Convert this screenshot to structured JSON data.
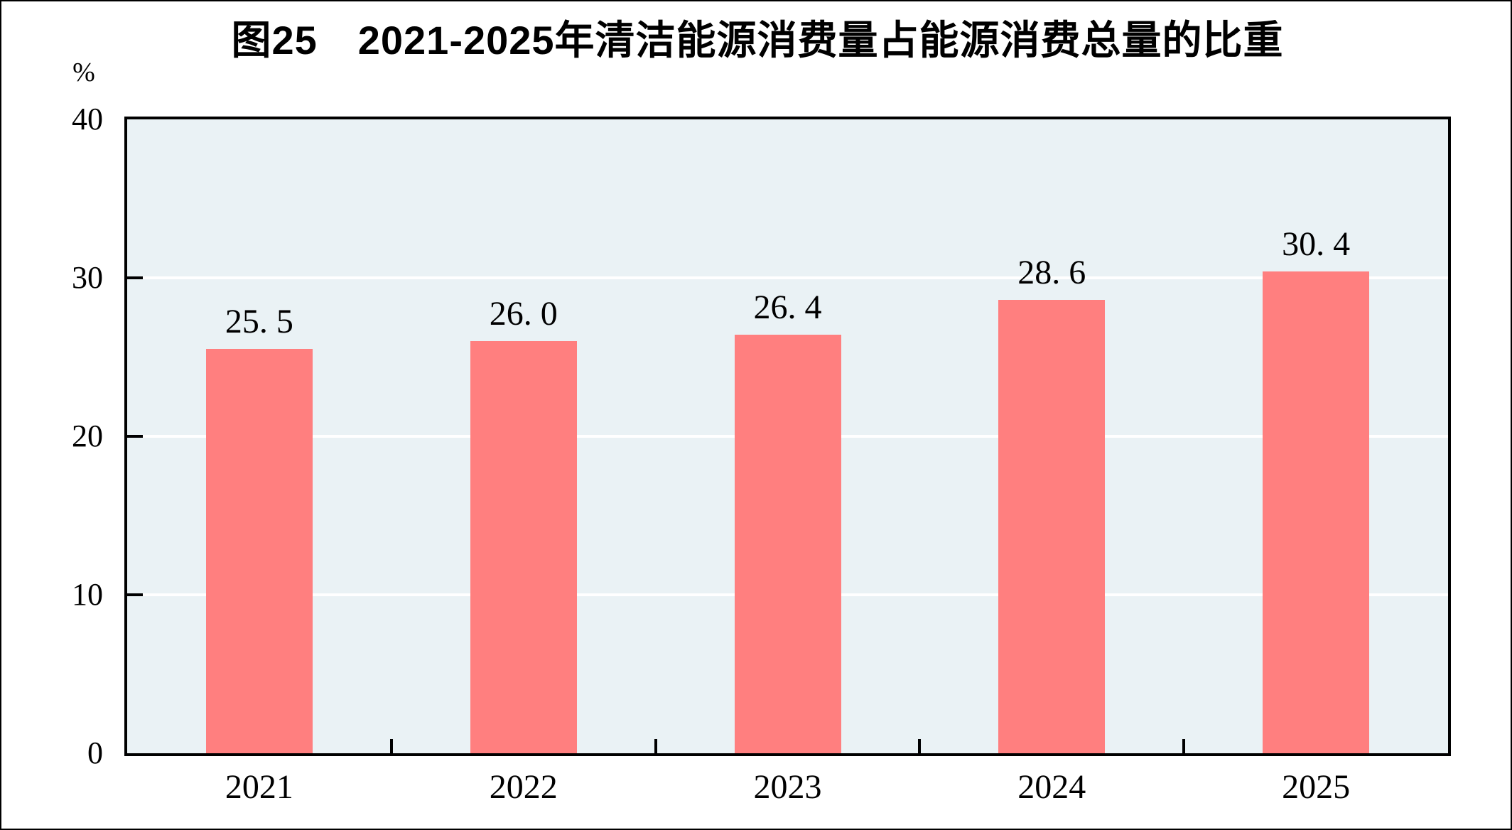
{
  "title": "图25　2021-2025年清洁能源消费量占能源消费总量的比重",
  "y_axis_unit": "%",
  "chart_data": {
    "type": "bar",
    "title": "图25　2021-2025年清洁能源消费量占能源消费总量的比重",
    "categories": [
      "2021",
      "2022",
      "2023",
      "2024",
      "2025"
    ],
    "values": [
      25.5,
      26.0,
      26.4,
      28.6,
      30.4
    ],
    "value_labels": [
      "25. 5",
      "26. 0",
      "26. 4",
      "28. 6",
      "30. 4"
    ],
    "xlabel": "",
    "ylabel": "%",
    "ylim": [
      0,
      40
    ],
    "y_ticks": [
      0,
      10,
      20,
      30,
      40
    ],
    "grid": true,
    "legend": "none",
    "colors": {
      "bar": "#FF7F7F",
      "plot_background": "#EAF2F5",
      "gridline": "#FFFFFF",
      "axis": "#000000",
      "text": "#000000",
      "page_background": "#FFFFFF"
    }
  }
}
